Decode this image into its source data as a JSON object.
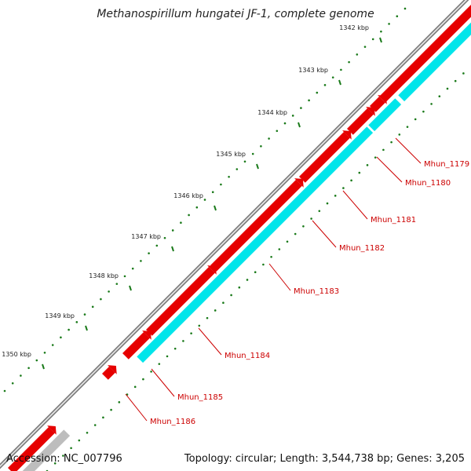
{
  "title": "Methanospirillum hungatei JF-1, complete genome",
  "footer": {
    "accession": "Accession: NC_007796",
    "summary": "Topology: circular; Length: 3,544,738 bp; Genes: 3,205"
  },
  "colors": {
    "forward_gene": "#e60000",
    "reverse_gene": "#00e5ea",
    "backbone": "#7f7f7f",
    "tick": "#1a7a1a",
    "gene_label": "#cc0000",
    "other_feature": "#bdbdbd"
  },
  "ticks": [
    {
      "label": "1342 kbp"
    },
    {
      "label": "1343 kbp"
    },
    {
      "label": "1344 kbp"
    },
    {
      "label": "1345 kbp"
    },
    {
      "label": "1346 kbp"
    },
    {
      "label": "1347 kbp"
    },
    {
      "label": "1348 kbp"
    },
    {
      "label": "1349 kbp"
    },
    {
      "label": "1350 kbp"
    }
  ],
  "genes": [
    {
      "label": "Mhun_1179"
    },
    {
      "label": "Mhun_1180"
    },
    {
      "label": "Mhun_1181"
    },
    {
      "label": "Mhun_1182"
    },
    {
      "label": "Mhun_1183"
    },
    {
      "label": "Mhun_1184"
    },
    {
      "label": "Mhun_1185"
    },
    {
      "label": "Mhun_1186"
    }
  ]
}
